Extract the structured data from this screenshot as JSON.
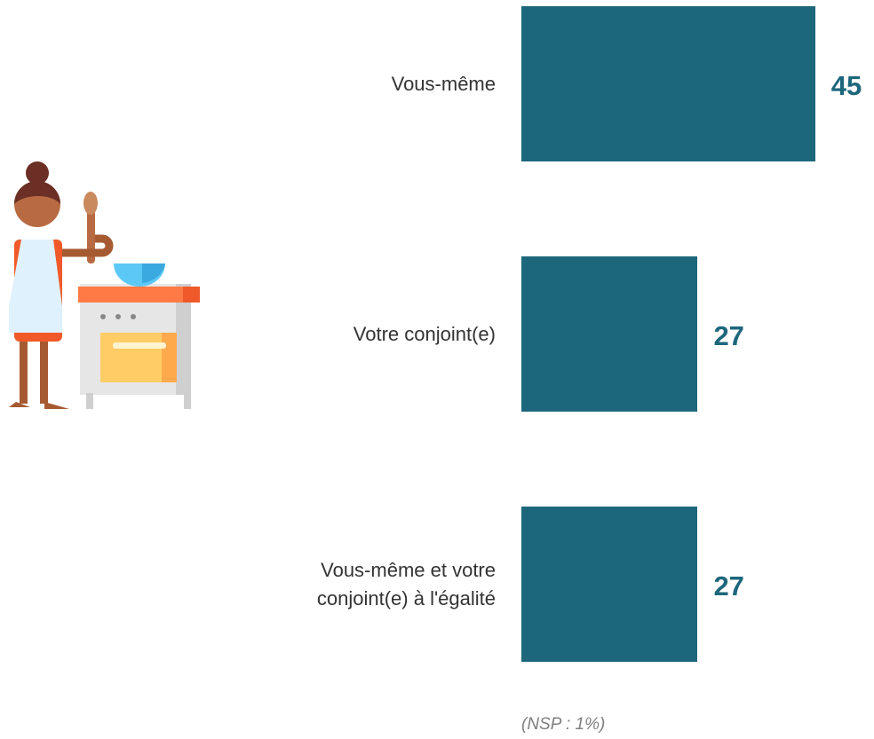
{
  "chart_data": {
    "type": "bar",
    "orientation": "horizontal",
    "categories": [
      "Vous-même",
      "Votre conjoint(e)",
      "Vous-même et votre conjoint(e) à l'égalité"
    ],
    "values": [
      45,
      27,
      27
    ],
    "color": "#1d677c",
    "value_label_color": "#1d677c",
    "note": "(NSP : 1%)"
  }
}
